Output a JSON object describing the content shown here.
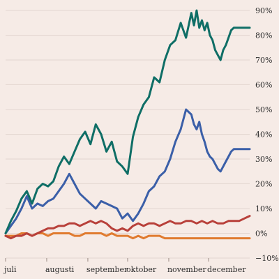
{
  "chart_data": {
    "type": "line",
    "title": "",
    "xlabel": "",
    "ylabel": "",
    "y_unit": "%",
    "ylim": [
      -10,
      90
    ],
    "yticks": [
      -10,
      0,
      10,
      20,
      30,
      40,
      50,
      60,
      70,
      80,
      90
    ],
    "ytick_labels": [
      "−10%",
      "0%",
      "10%",
      "20%",
      "30%",
      "40%",
      "50%",
      "60%",
      "70%",
      "80%",
      "90%"
    ],
    "x_tick_labels": [
      "juli",
      "augusti",
      "september",
      "oktober",
      "november",
      "december"
    ],
    "x_tick_positions": [
      0,
      31,
      62,
      92,
      123,
      153
    ],
    "x_range": [
      0,
      184
    ],
    "grid": "horizontal",
    "legend": "none",
    "series": [
      {
        "color": "#0f6e66",
        "x": [
          0,
          4,
          8,
          12,
          16,
          20,
          24,
          28,
          32,
          36,
          40,
          44,
          48,
          52,
          56,
          60,
          64,
          68,
          72,
          76,
          80,
          84,
          88,
          92,
          96,
          100,
          104,
          108,
          112,
          116,
          120,
          124,
          128,
          132,
          136,
          140,
          142,
          144,
          146,
          148,
          150,
          152,
          154,
          156,
          158,
          160,
          162,
          164,
          166,
          168,
          170,
          172,
          174,
          176,
          178,
          180,
          182,
          184
        ],
        "values": [
          0,
          5,
          9,
          14,
          17,
          12,
          18,
          20,
          19,
          21,
          27,
          31,
          28,
          33,
          38,
          41,
          36,
          44,
          40,
          33,
          37,
          29,
          27,
          24,
          39,
          47,
          52,
          55,
          63,
          61,
          70,
          76,
          78,
          85,
          79,
          89,
          84,
          90,
          83,
          86,
          82,
          85,
          80,
          78,
          74,
          72,
          70,
          74,
          76,
          79,
          82,
          83,
          83,
          83,
          83,
          83,
          83,
          83
        ]
      },
      {
        "color": "#3b5fa8",
        "x": [
          0,
          4,
          8,
          12,
          16,
          20,
          24,
          28,
          32,
          36,
          40,
          44,
          48,
          52,
          56,
          60,
          64,
          68,
          72,
          76,
          80,
          84,
          88,
          92,
          96,
          100,
          104,
          108,
          112,
          116,
          120,
          124,
          128,
          132,
          136,
          140,
          142,
          144,
          146,
          148,
          150,
          152,
          154,
          156,
          158,
          160,
          162,
          164,
          166,
          168,
          170,
          172,
          174,
          176,
          178,
          180,
          182,
          184
        ],
        "values": [
          0,
          3,
          6,
          10,
          15,
          10,
          12,
          11,
          13,
          14,
          17,
          20,
          24,
          20,
          16,
          14,
          12,
          10,
          13,
          12,
          11,
          10,
          6,
          8,
          5,
          8,
          12,
          17,
          19,
          23,
          25,
          30,
          37,
          42,
          50,
          48,
          44,
          42,
          45,
          40,
          37,
          33,
          31,
          30,
          28,
          26,
          25,
          27,
          29,
          31,
          33,
          34,
          34,
          34,
          34,
          34,
          34,
          34
        ]
      },
      {
        "color": "#b8403a",
        "x": [
          0,
          4,
          8,
          12,
          16,
          20,
          24,
          28,
          32,
          36,
          40,
          44,
          48,
          52,
          56,
          60,
          64,
          68,
          72,
          76,
          80,
          84,
          88,
          92,
          96,
          100,
          104,
          108,
          112,
          116,
          120,
          124,
          128,
          132,
          136,
          140,
          144,
          148,
          152,
          156,
          160,
          164,
          168,
          172,
          176,
          180,
          184
        ],
        "values": [
          -1,
          -2,
          -1,
          -1,
          0,
          -1,
          0,
          1,
          2,
          2,
          3,
          3,
          4,
          4,
          3,
          4,
          5,
          4,
          5,
          4,
          2,
          1,
          2,
          1,
          3,
          4,
          3,
          4,
          4,
          3,
          4,
          5,
          4,
          4,
          5,
          5,
          4,
          5,
          4,
          5,
          4,
          4,
          5,
          5,
          5,
          6,
          7
        ]
      },
      {
        "color": "#e07b2f",
        "x": [
          0,
          4,
          8,
          12,
          16,
          20,
          24,
          28,
          32,
          36,
          40,
          44,
          48,
          52,
          56,
          60,
          64,
          68,
          72,
          76,
          80,
          84,
          88,
          92,
          96,
          100,
          104,
          108,
          112,
          116,
          120,
          124,
          128,
          132,
          136,
          140,
          144,
          148,
          152,
          156,
          160,
          164,
          168,
          172,
          176,
          180,
          184
        ],
        "values": [
          -1,
          -1,
          -1,
          0,
          0,
          -1,
          0,
          0,
          -1,
          0,
          0,
          0,
          0,
          -1,
          -1,
          0,
          0,
          0,
          0,
          -1,
          0,
          -1,
          -1,
          -1,
          -2,
          -1,
          -2,
          -1,
          -1,
          -1,
          -2,
          -2,
          -2,
          -2,
          -2,
          -2,
          -2,
          -2,
          -2,
          -2,
          -2,
          -2,
          -2,
          -2,
          -2,
          -2,
          -2
        ]
      }
    ]
  }
}
